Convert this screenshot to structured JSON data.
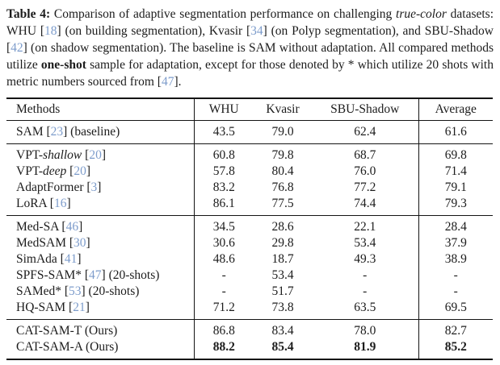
{
  "colors": {
    "text": "#1c1c1c",
    "citation": "#7d9ccb",
    "rule": "#141414",
    "background": "#ffffff"
  },
  "caption": {
    "segments": [
      {
        "text": "Table 4:",
        "style": "bold"
      },
      {
        "text": " Comparison of adaptive segmentation performance on challenging ",
        "style": "plain"
      },
      {
        "text": "true-color",
        "style": "italic"
      },
      {
        "text": " datasets: WHU [",
        "style": "plain"
      },
      {
        "text": "18",
        "style": "cite"
      },
      {
        "text": "] (on building segmentation), Kvasir [",
        "style": "plain"
      },
      {
        "text": "34",
        "style": "cite"
      },
      {
        "text": "] (on Polyp segmentation), and SBU-Shadow [",
        "style": "plain"
      },
      {
        "text": "42",
        "style": "cite"
      },
      {
        "text": "] (on shadow segmentation). The baseline is SAM without adaptation. All compared methods utilize ",
        "style": "plain"
      },
      {
        "text": "one-shot",
        "style": "bold"
      },
      {
        "text": " sample for adaptation, except for those denoted by * which utilize 20 shots with metric numbers sourced from [",
        "style": "plain"
      },
      {
        "text": "47",
        "style": "cite"
      },
      {
        "text": "].",
        "style": "plain"
      }
    ]
  },
  "table": {
    "columns": [
      "Methods",
      "WHU",
      "Kvasir",
      "SBU-Shadow",
      "Average"
    ],
    "groups": [
      {
        "name": "baseline",
        "rows": [
          {
            "method": [
              {
                "text": "SAM [",
                "style": "plain"
              },
              {
                "text": "23",
                "style": "cite"
              },
              {
                "text": "] (baseline)",
                "style": "plain"
              }
            ],
            "values": [
              "43.5",
              "79.0",
              "62.4",
              "61.6"
            ],
            "bold_values": false
          }
        ]
      },
      {
        "name": "tuning-methods",
        "rows": [
          {
            "method": [
              {
                "text": "VPT-",
                "style": "plain"
              },
              {
                "text": "shallow",
                "style": "italic"
              },
              {
                "text": " [",
                "style": "plain"
              },
              {
                "text": "20",
                "style": "cite"
              },
              {
                "text": "]",
                "style": "plain"
              }
            ],
            "values": [
              "60.8",
              "79.8",
              "68.7",
              "69.8"
            ],
            "bold_values": false
          },
          {
            "method": [
              {
                "text": "VPT-",
                "style": "plain"
              },
              {
                "text": "deep",
                "style": "italic"
              },
              {
                "text": " [",
                "style": "plain"
              },
              {
                "text": "20",
                "style": "cite"
              },
              {
                "text": "]",
                "style": "plain"
              }
            ],
            "values": [
              "57.8",
              "80.4",
              "76.0",
              "71.4"
            ],
            "bold_values": false
          },
          {
            "method": [
              {
                "text": "AdaptFormer [",
                "style": "plain"
              },
              {
                "text": "3",
                "style": "cite"
              },
              {
                "text": "]",
                "style": "plain"
              }
            ],
            "values": [
              "83.2",
              "76.8",
              "77.2",
              "79.1"
            ],
            "bold_values": false
          },
          {
            "method": [
              {
                "text": "LoRA [",
                "style": "plain"
              },
              {
                "text": "16",
                "style": "cite"
              },
              {
                "text": "]",
                "style": "plain"
              }
            ],
            "values": [
              "86.1",
              "77.5",
              "74.4",
              "79.3"
            ],
            "bold_values": false
          }
        ]
      },
      {
        "name": "sam-variants",
        "rows": [
          {
            "method": [
              {
                "text": "Med-SA [",
                "style": "plain"
              },
              {
                "text": "46",
                "style": "cite"
              },
              {
                "text": "]",
                "style": "plain"
              }
            ],
            "values": [
              "34.5",
              "28.6",
              "22.1",
              "28.4"
            ],
            "bold_values": false
          },
          {
            "method": [
              {
                "text": "MedSAM [",
                "style": "plain"
              },
              {
                "text": "30",
                "style": "cite"
              },
              {
                "text": "]",
                "style": "plain"
              }
            ],
            "values": [
              "30.6",
              "29.8",
              "53.4",
              "37.9"
            ],
            "bold_values": false
          },
          {
            "method": [
              {
                "text": "SimAda [",
                "style": "plain"
              },
              {
                "text": "41",
                "style": "cite"
              },
              {
                "text": "]",
                "style": "plain"
              }
            ],
            "values": [
              "48.6",
              "18.7",
              "49.3",
              "38.9"
            ],
            "bold_values": false
          },
          {
            "method": [
              {
                "text": "SPFS-SAM* [",
                "style": "plain"
              },
              {
                "text": "47",
                "style": "cite"
              },
              {
                "text": "] (20-shots)",
                "style": "plain"
              }
            ],
            "values": [
              "-",
              "53.4",
              "-",
              "-"
            ],
            "bold_values": false
          },
          {
            "method": [
              {
                "text": "SAMed* [",
                "style": "plain"
              },
              {
                "text": "53",
                "style": "cite"
              },
              {
                "text": "] (20-shots)",
                "style": "plain"
              }
            ],
            "values": [
              "-",
              "51.7",
              "-",
              "-"
            ],
            "bold_values": false
          },
          {
            "method": [
              {
                "text": "HQ-SAM [",
                "style": "plain"
              },
              {
                "text": "21",
                "style": "cite"
              },
              {
                "text": "]",
                "style": "plain"
              }
            ],
            "values": [
              "71.2",
              "73.8",
              "63.5",
              "69.5"
            ],
            "bold_values": false
          }
        ]
      },
      {
        "name": "ours",
        "rows": [
          {
            "method": [
              {
                "text": "CAT-SAM-T (Ours)",
                "style": "plain"
              }
            ],
            "values": [
              "86.8",
              "83.4",
              "78.0",
              "82.7"
            ],
            "bold_values": false
          },
          {
            "method": [
              {
                "text": "CAT-SAM-A (Ours)",
                "style": "plain"
              }
            ],
            "values": [
              "88.2",
              "85.4",
              "81.9",
              "85.2"
            ],
            "bold_values": true
          }
        ]
      }
    ]
  }
}
